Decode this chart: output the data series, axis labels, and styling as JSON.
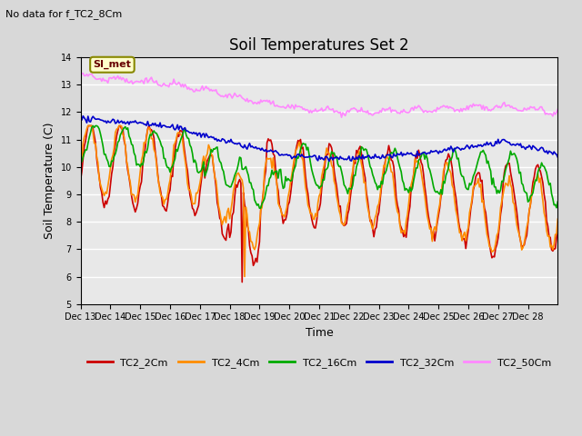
{
  "title": "Soil Temperatures Set 2",
  "subtitle": "No data for f_TC2_8Cm",
  "xlabel": "Time",
  "ylabel": "Soil Temperature (C)",
  "ylim": [
    5.0,
    14.0
  ],
  "yticks": [
    5.0,
    6.0,
    7.0,
    8.0,
    9.0,
    10.0,
    11.0,
    12.0,
    13.0,
    14.0
  ],
  "xlim": [
    0,
    384
  ],
  "xtick_labels": [
    "Dec 13",
    "Dec 14",
    "Dec 15",
    "Dec 16",
    "Dec 17",
    "Dec 18",
    "Dec 19",
    "Dec 20",
    "Dec 21",
    "Dec 22",
    "Dec 23",
    "Dec 24",
    "Dec 25",
    "Dec 26",
    "Dec 27",
    "Dec 28"
  ],
  "xtick_positions": [
    0,
    24,
    48,
    72,
    96,
    120,
    144,
    168,
    192,
    216,
    240,
    264,
    288,
    312,
    336,
    360
  ],
  "legend_labels": [
    "TC2_2Cm",
    "TC2_4Cm",
    "TC2_16Cm",
    "TC2_32Cm",
    "TC2_50Cm"
  ],
  "line_colors": [
    "#cc0000",
    "#ff8c00",
    "#00aa00",
    "#0000cc",
    "#ff88ff"
  ],
  "line_widths": [
    1.2,
    1.2,
    1.2,
    1.2,
    1.2
  ],
  "bg_color": "#e8e8e8",
  "plot_bg": "#f0f0f0",
  "annotation_text": "SI_met",
  "annotation_bg": "#ffffcc",
  "annotation_border": "#888800"
}
